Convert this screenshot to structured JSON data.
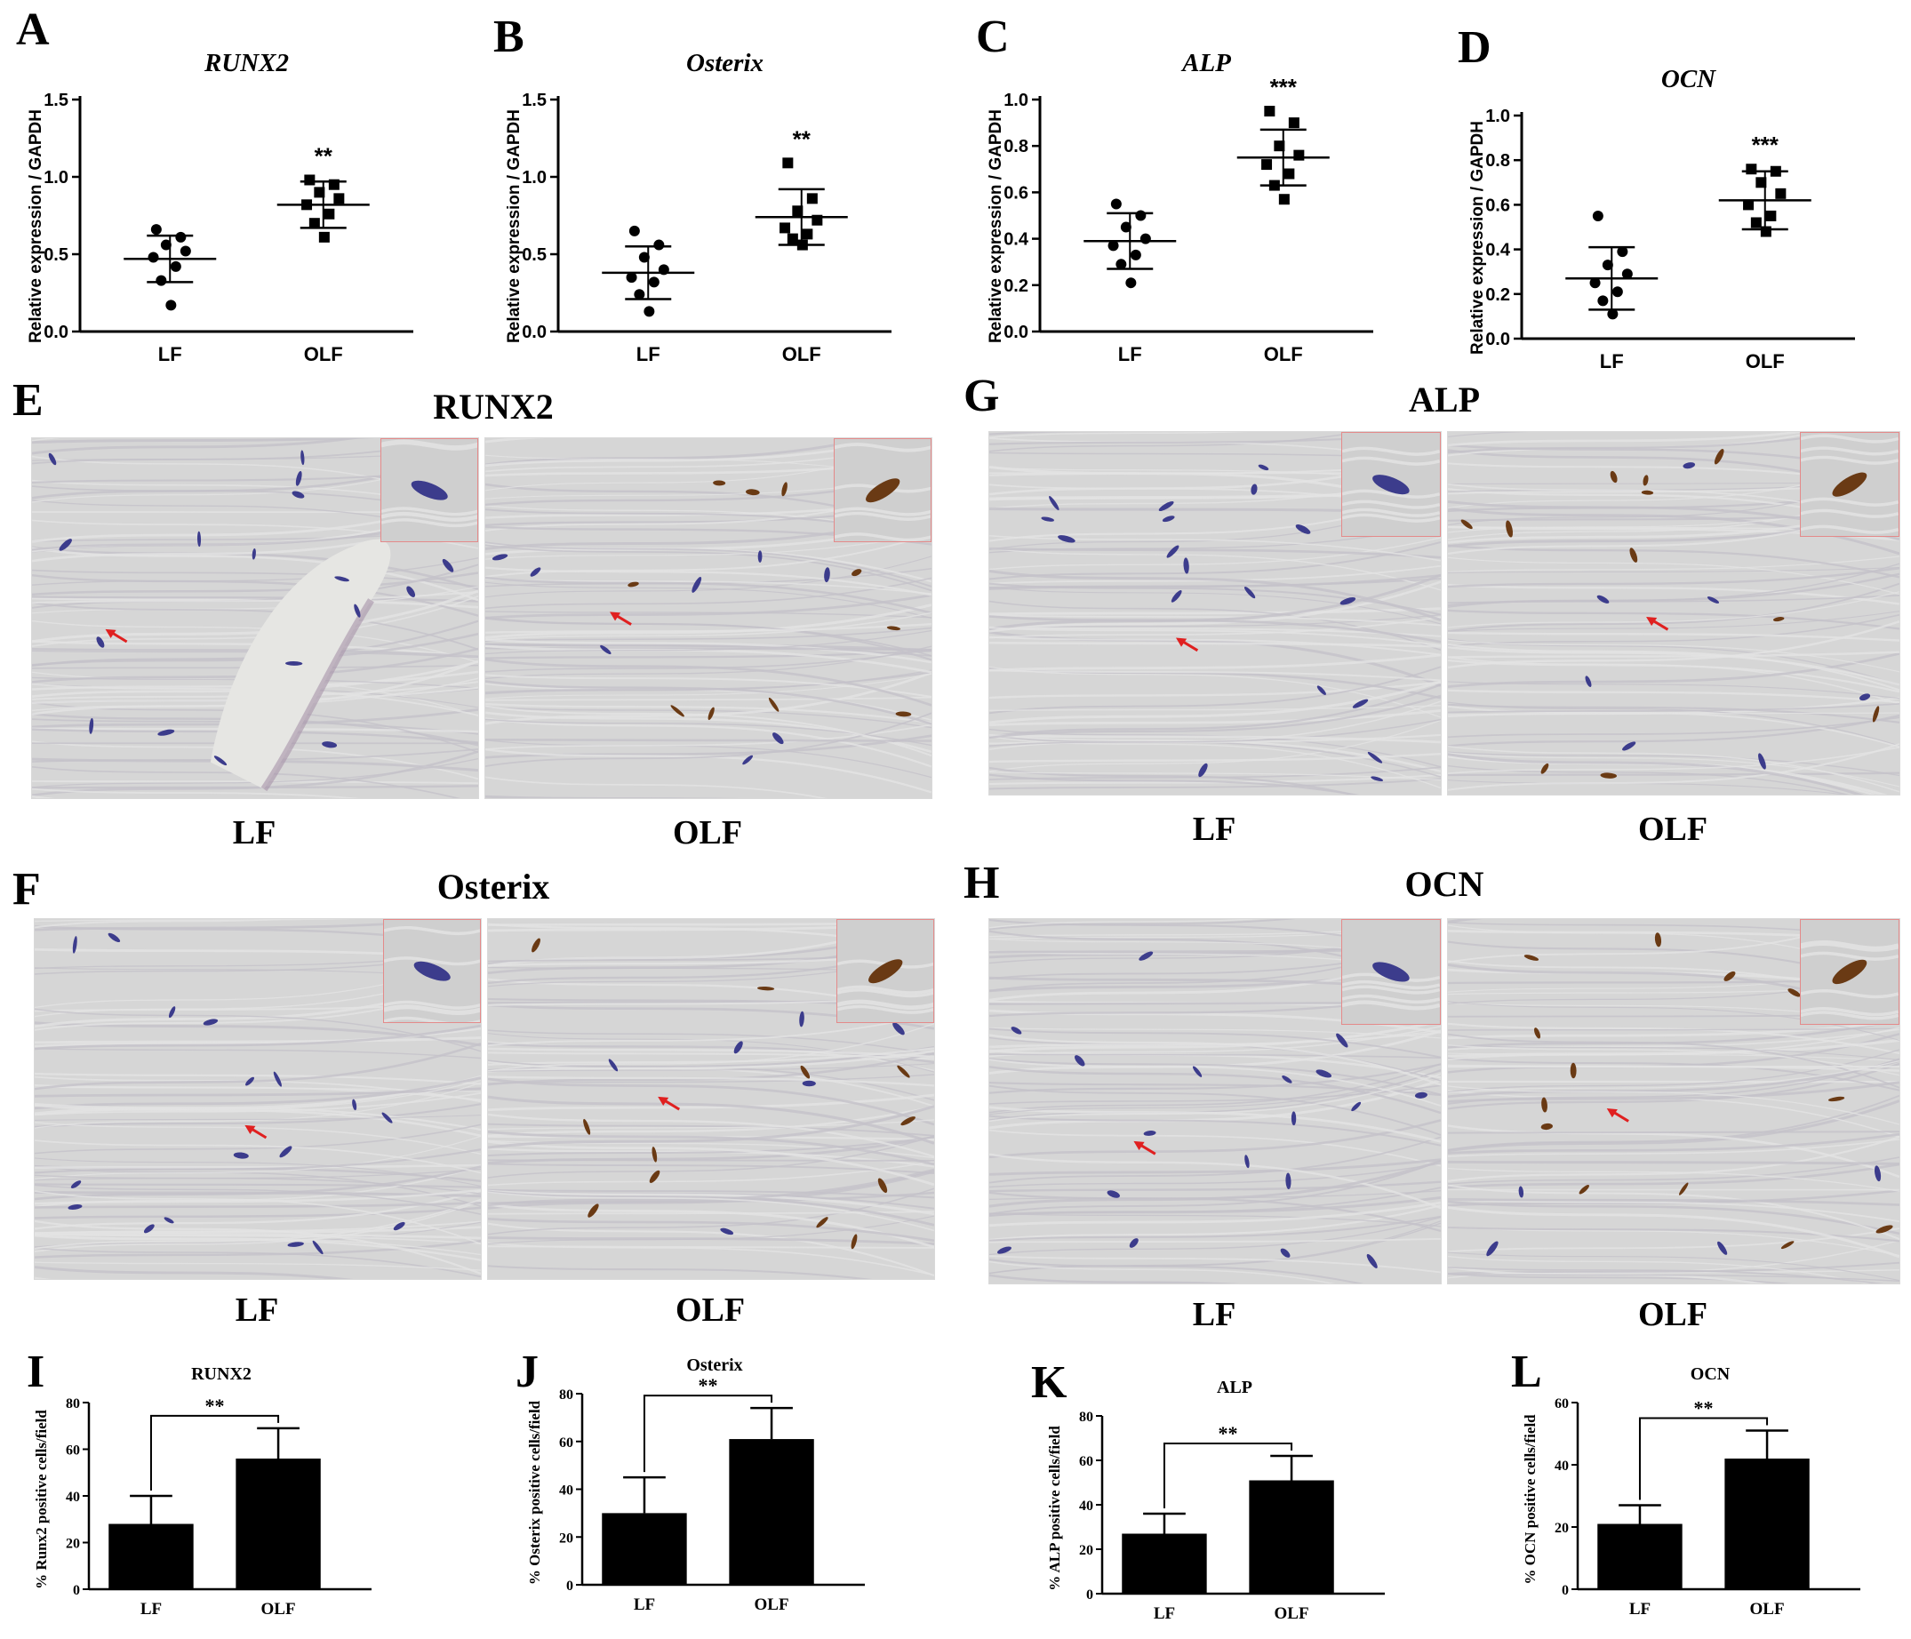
{
  "panel_letters": [
    "A",
    "B",
    "C",
    "D",
    "E",
    "F",
    "G",
    "H",
    "I",
    "J",
    "K",
    "L"
  ],
  "micrographs": {
    "E": {
      "title": "RUNX2",
      "left_label": "LF",
      "right_label": "OLF"
    },
    "F": {
      "title": "Osterix",
      "left_label": "LF",
      "right_label": "OLF"
    },
    "G": {
      "title": "ALP",
      "left_label": "LF",
      "right_label": "OLF"
    },
    "H": {
      "title": "OCN",
      "left_label": "LF",
      "right_label": "OLF"
    }
  },
  "colors": {
    "tissue_background": "#d6d6d6",
    "hematoxylin": "#3c3c8c",
    "dab_positive": "#6a3a14",
    "arrow": "#e02020",
    "inset_border": "#e48a8a",
    "bar_fill": "#000000"
  },
  "chart_data": [
    {
      "panel": "A",
      "type": "scatter",
      "title": "RUNX2",
      "ylabel": "Relative expression / GAPDH",
      "categories": [
        "LF",
        "OLF"
      ],
      "ylim": [
        0,
        1.5
      ],
      "yticks": [
        "0.0",
        "0.5",
        "1.0",
        "1.5"
      ],
      "significance": "**",
      "series": [
        {
          "category": "LF",
          "marker": "circle",
          "points": [
            0.66,
            0.61,
            0.56,
            0.52,
            0.48,
            0.42,
            0.33,
            0.17
          ],
          "mean": 0.47,
          "sd": 0.15
        },
        {
          "category": "OLF",
          "marker": "square",
          "points": [
            0.98,
            0.95,
            0.9,
            0.86,
            0.82,
            0.76,
            0.7,
            0.61
          ],
          "mean": 0.82,
          "sd": 0.15
        }
      ]
    },
    {
      "panel": "B",
      "type": "scatter",
      "title": "Osterix",
      "ylabel": "Relative expression / GAPDH",
      "categories": [
        "LF",
        "OLF"
      ],
      "ylim": [
        0,
        1.5
      ],
      "yticks": [
        "0.0",
        "0.5",
        "1.0",
        "1.5"
      ],
      "significance": "**",
      "series": [
        {
          "category": "LF",
          "marker": "circle",
          "points": [
            0.65,
            0.56,
            0.48,
            0.4,
            0.35,
            0.32,
            0.24,
            0.13
          ],
          "mean": 0.38,
          "sd": 0.17
        },
        {
          "category": "OLF",
          "marker": "square",
          "points": [
            1.09,
            0.86,
            0.78,
            0.72,
            0.67,
            0.63,
            0.6,
            0.56
          ],
          "mean": 0.74,
          "sd": 0.18
        }
      ]
    },
    {
      "panel": "C",
      "type": "scatter",
      "title": "ALP",
      "ylabel": "Relative expression / GAPDH",
      "categories": [
        "LF",
        "OLF"
      ],
      "ylim": [
        0,
        1.0
      ],
      "yticks": [
        "0.0",
        "0.2",
        "0.4",
        "0.6",
        "0.8",
        "1.0"
      ],
      "significance": "***",
      "series": [
        {
          "category": "LF",
          "marker": "circle",
          "points": [
            0.55,
            0.5,
            0.45,
            0.4,
            0.37,
            0.33,
            0.29,
            0.21
          ],
          "mean": 0.39,
          "sd": 0.12
        },
        {
          "category": "OLF",
          "marker": "square",
          "points": [
            0.95,
            0.9,
            0.8,
            0.76,
            0.72,
            0.68,
            0.63,
            0.57
          ],
          "mean": 0.75,
          "sd": 0.12
        }
      ]
    },
    {
      "panel": "D",
      "type": "scatter",
      "title": "OCN",
      "ylabel": "Relative expression / GAPDH",
      "categories": [
        "LF",
        "OLF"
      ],
      "ylim": [
        0,
        1.0
      ],
      "yticks": [
        "0.0",
        "0.2",
        "0.4",
        "0.6",
        "0.8",
        "1.0"
      ],
      "significance": "***",
      "series": [
        {
          "category": "LF",
          "marker": "circle",
          "points": [
            0.55,
            0.39,
            0.33,
            0.29,
            0.25,
            0.21,
            0.17,
            0.11
          ],
          "mean": 0.27,
          "sd": 0.14
        },
        {
          "category": "OLF",
          "marker": "square",
          "points": [
            0.76,
            0.75,
            0.7,
            0.65,
            0.6,
            0.55,
            0.52,
            0.48
          ],
          "mean": 0.62,
          "sd": 0.13
        }
      ]
    },
    {
      "panel": "I",
      "type": "bar",
      "title": "RUNX2",
      "ylabel": "% Runx2 positive cells/field",
      "categories": [
        "LF",
        "OLF"
      ],
      "values": [
        28,
        56
      ],
      "errors": [
        12,
        13
      ],
      "ylim": [
        0,
        80
      ],
      "yticks": [
        "0",
        "20",
        "40",
        "60",
        "80"
      ],
      "significance": "**"
    },
    {
      "panel": "J",
      "type": "bar",
      "title": "Osterix",
      "ylabel": "% Osterix positive cells/field",
      "categories": [
        "LF",
        "OLF"
      ],
      "values": [
        30,
        61
      ],
      "errors": [
        15,
        13
      ],
      "ylim": [
        0,
        80
      ],
      "yticks": [
        "0",
        "20",
        "40",
        "60",
        "80"
      ],
      "significance": "**"
    },
    {
      "panel": "K",
      "type": "bar",
      "title": "ALP",
      "ylabel": "% ALP positive cells/field",
      "categories": [
        "LF",
        "OLF"
      ],
      "values": [
        27,
        51
      ],
      "errors": [
        9,
        11
      ],
      "ylim": [
        0,
        80
      ],
      "yticks": [
        "0",
        "20",
        "40",
        "60",
        "80"
      ],
      "significance": "**"
    },
    {
      "panel": "L",
      "type": "bar",
      "title": "OCN",
      "ylabel": "% OCN positive cells/field",
      "categories": [
        "LF",
        "OLF"
      ],
      "values": [
        21,
        42
      ],
      "errors": [
        6,
        9
      ],
      "ylim": [
        0,
        60
      ],
      "yticks": [
        "0",
        "20",
        "40",
        "60"
      ],
      "significance": "**"
    }
  ]
}
